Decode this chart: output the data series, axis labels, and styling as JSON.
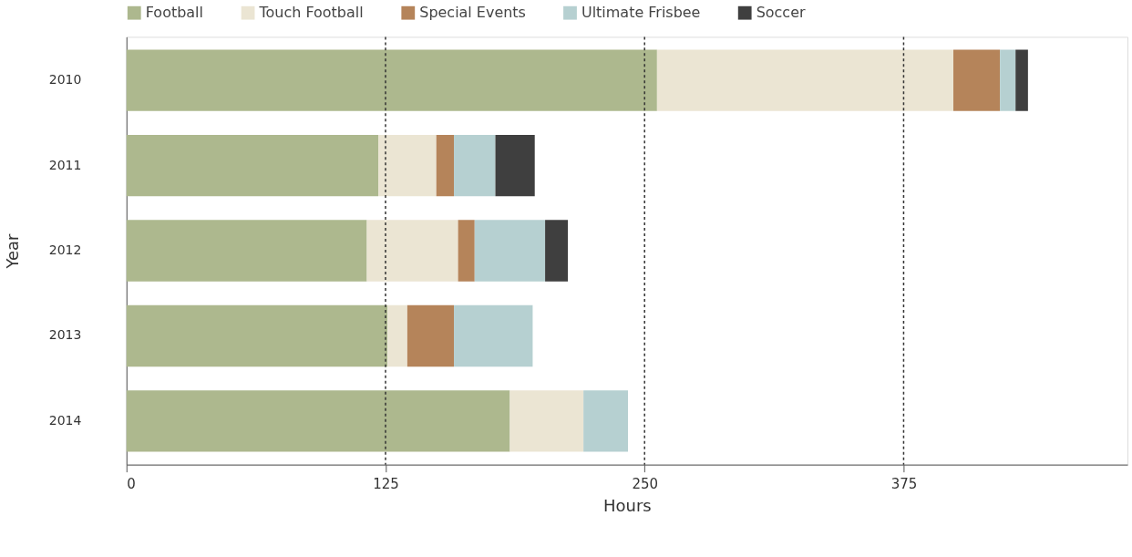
{
  "chart_data": {
    "type": "bar",
    "orientation": "horizontal",
    "stacked": true,
    "xlabel": "Hours",
    "ylabel": "Year",
    "categories": [
      "2010",
      "2011",
      "2012",
      "2013",
      "2014"
    ],
    "series": [
      {
        "name": "Football",
        "color": "#adb88e",
        "values": [
          256,
          121.5,
          116,
          126,
          185
        ]
      },
      {
        "name": "Touch Football",
        "color": "#ebe5d3",
        "values": [
          143,
          28,
          44,
          9.5,
          35.5
        ]
      },
      {
        "name": "Special Events",
        "color": "#b5845a",
        "values": [
          22.5,
          8.5,
          8,
          22.5,
          0
        ]
      },
      {
        "name": "Ultimate Frisbee",
        "color": "#b6d0d1",
        "values": [
          7.5,
          20,
          34,
          38,
          21.5
        ]
      },
      {
        "name": "Soccer",
        "color": "#3f3f3f",
        "values": [
          6,
          19,
          11,
          0,
          0
        ]
      }
    ],
    "xlim": [
      0,
      483
    ],
    "xticks": [
      0,
      125,
      250,
      375
    ],
    "legend": "top",
    "grid": false,
    "ref_lines": [
      {
        "axis": "x",
        "value": 125,
        "line_style": "dotted",
        "color": "#333333"
      },
      {
        "axis": "x",
        "value": 250,
        "line_style": "dotted",
        "color": "#333333"
      },
      {
        "axis": "x",
        "value": 375,
        "line_style": "dotted",
        "color": "#333333"
      }
    ]
  }
}
